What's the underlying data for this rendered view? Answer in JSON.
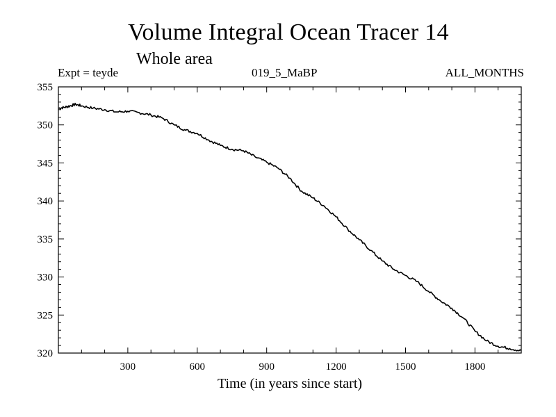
{
  "chart_data": {
    "type": "line",
    "title": "Volume Integral Ocean Tracer 14",
    "subtitle": "Whole area",
    "header_left": "Expt = teyde",
    "header_mid": "019_5_MaBP",
    "header_right": "ALL_MONTHS",
    "xlabel": "Time (in years since start)",
    "ylabel": "",
    "xlim": [
      0,
      2000
    ],
    "ylim": [
      320,
      355
    ],
    "xticks": [
      300,
      600,
      900,
      1200,
      1500,
      1800
    ],
    "yticks": [
      320,
      325,
      330,
      335,
      340,
      345,
      350,
      355
    ],
    "series": [
      {
        "name": "Ocean Tracer 14",
        "x": [
          0,
          25,
          50,
          75,
          100,
          150,
          200,
          250,
          300,
          350,
          400,
          450,
          500,
          550,
          600,
          650,
          700,
          750,
          800,
          850,
          900,
          950,
          1000,
          1050,
          1100,
          1150,
          1200,
          1250,
          1300,
          1350,
          1400,
          1450,
          1500,
          1550,
          1600,
          1650,
          1700,
          1750,
          1800,
          1850,
          1900,
          1950,
          2000
        ],
        "y": [
          352.2,
          352.3,
          352.5,
          352.7,
          352.5,
          352.2,
          352.0,
          351.7,
          351.8,
          351.6,
          351.3,
          350.9,
          350.0,
          349.3,
          348.9,
          348.0,
          347.3,
          346.8,
          346.6,
          345.8,
          345.1,
          344.3,
          343.0,
          341.3,
          340.4,
          339.3,
          337.9,
          336.3,
          334.9,
          333.5,
          332.1,
          331.0,
          330.2,
          329.4,
          328.1,
          326.9,
          325.9,
          324.6,
          322.9,
          321.6,
          320.9,
          320.6,
          320.3
        ]
      }
    ]
  }
}
